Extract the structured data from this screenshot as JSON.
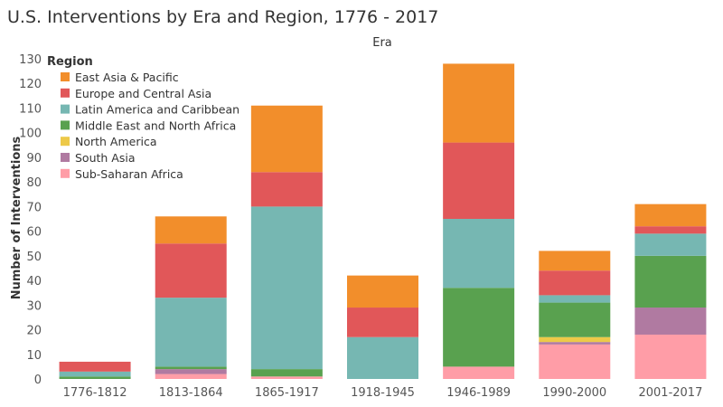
{
  "chart_data": {
    "type": "bar",
    "stacked": true,
    "title": "U.S. Interventions by Era and Region, 1776 - 2017",
    "column_header": "Era",
    "xlabel": "",
    "ylabel": "Number of Interventions",
    "ylim": [
      0,
      130
    ],
    "yticks": [
      0,
      10,
      20,
      30,
      40,
      50,
      60,
      70,
      80,
      90,
      100,
      110,
      120,
      130
    ],
    "legend_title": "Region",
    "legend_position": "top-left",
    "grid": false,
    "categories": [
      "1776-1812",
      "1813-1864",
      "1865-1917",
      "1918-1945",
      "1946-1989",
      "1990-2000",
      "2001-2017"
    ],
    "series": [
      {
        "name": "East Asia & Pacific",
        "color": "#f28e2b",
        "values": [
          0,
          11,
          27,
          13,
          32,
          8,
          9
        ]
      },
      {
        "name": "Europe and Central Asia",
        "color": "#e15759",
        "values": [
          4,
          22,
          14,
          12,
          31,
          10,
          3
        ]
      },
      {
        "name": "Latin America and Caribbean",
        "color": "#76b7b2",
        "values": [
          2,
          28,
          66,
          17,
          28,
          3,
          9
        ]
      },
      {
        "name": "Middle East and North Africa",
        "color": "#59a14f",
        "values": [
          1,
          1,
          3,
          0,
          32,
          14,
          21
        ]
      },
      {
        "name": "North America",
        "color": "#edc948",
        "values": [
          0,
          0,
          0,
          0,
          0,
          2,
          0
        ]
      },
      {
        "name": "South Asia",
        "color": "#b07aa1",
        "values": [
          0,
          2,
          0,
          0,
          0,
          1,
          11
        ]
      },
      {
        "name": "Sub-Saharan Africa",
        "color": "#ff9da7",
        "values": [
          0,
          2,
          1,
          0,
          5,
          14,
          18
        ]
      }
    ]
  }
}
